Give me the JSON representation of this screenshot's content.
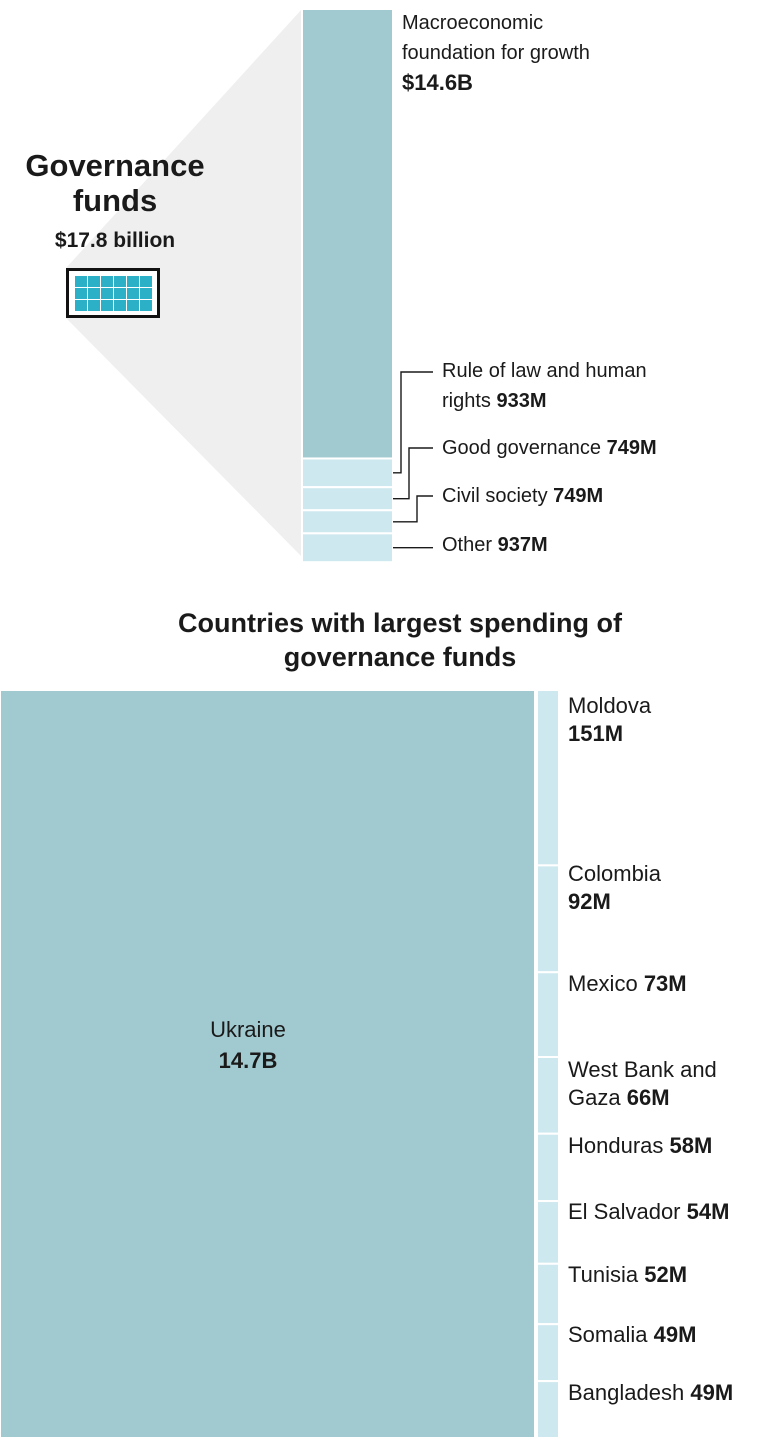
{
  "colors": {
    "dark_fill": "#a1c9d0",
    "light_fill": "#cde8ef",
    "wedge": "#efefef",
    "icon_cell": "#2bb0c7",
    "leader": "#1a1a1a"
  },
  "headline": {
    "title": "Governance funds",
    "amount": "$17.8 billion",
    "icon": "grid-icon"
  },
  "countries_title": "Countries with largest spending of governance funds",
  "chart_data": [
    {
      "type": "bar",
      "orientation": "vertical-stacked",
      "title": "Governance funds",
      "total_label": "$17.8 billion",
      "total": 17800,
      "unit": "M",
      "categories": [
        "Macroeconomic foundation for growth",
        "Rule of law and human rights",
        "Good governance",
        "Civil society",
        "Other"
      ],
      "values": [
        14600,
        933,
        749,
        749,
        937
      ],
      "value_labels": [
        "$14.6B",
        "933M",
        "749M",
        "749M",
        "937M"
      ]
    },
    {
      "type": "heatmap",
      "layout": "treemap",
      "title": "Countries with largest spending of governance funds",
      "unit": "M",
      "categories": [
        "Ukraine",
        "Moldova",
        "Colombia",
        "Mexico",
        "West Bank and Gaza",
        "Honduras",
        "El Salvador",
        "Tunisia",
        "Somalia",
        "Bangladesh"
      ],
      "values": [
        14700,
        151,
        92,
        73,
        66,
        58,
        54,
        52,
        49,
        49
      ],
      "value_labels": [
        "14.7B",
        "151M",
        "92M",
        "73M",
        "66M",
        "58M",
        "54M",
        "52M",
        "49M",
        "49M"
      ]
    }
  ]
}
